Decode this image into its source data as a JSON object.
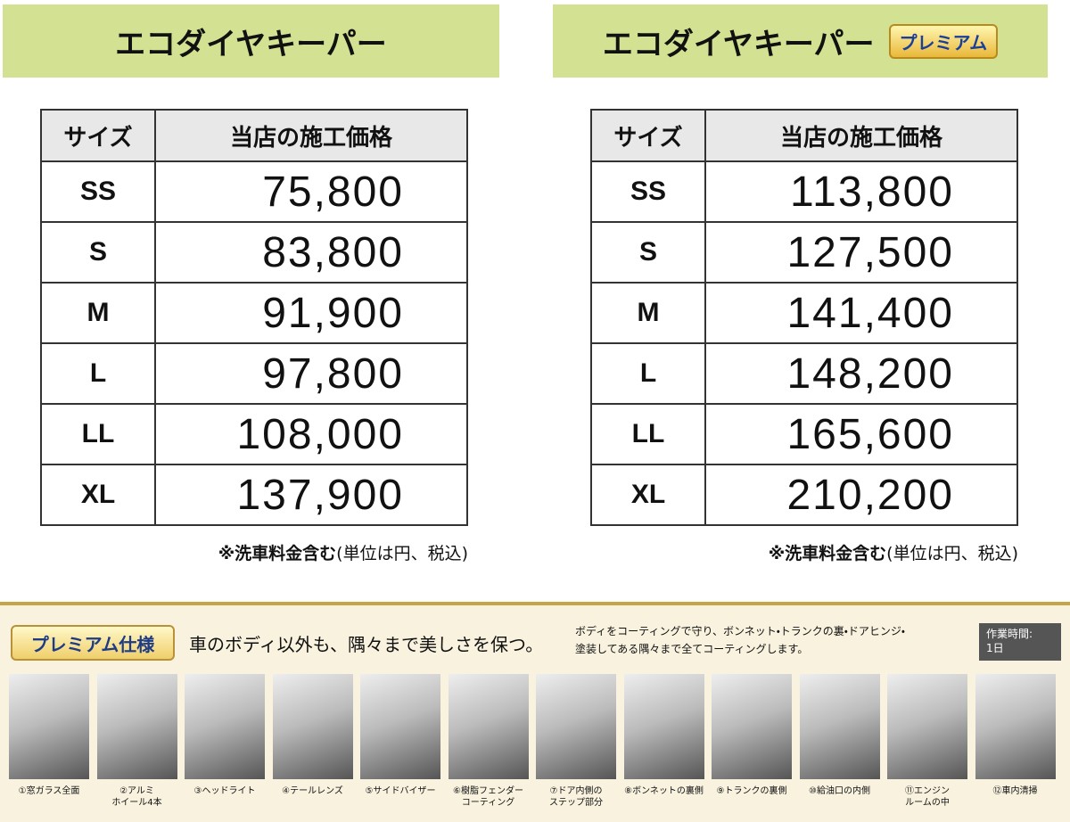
{
  "left": {
    "title": "エコダイヤキーパー",
    "table": {
      "header": [
        "サイズ",
        "当店の施工価格"
      ],
      "rows": [
        [
          "SS",
          "75,800"
        ],
        [
          "S",
          "83,800"
        ],
        [
          "M",
          "91,900"
        ],
        [
          "L",
          "97,800"
        ],
        [
          "LL",
          "108,000"
        ],
        [
          "XL",
          "137,900"
        ]
      ]
    },
    "note": {
      "bold": "※洗車料金含む",
      "rest": "(単位は円、税込)"
    }
  },
  "right": {
    "title": "エコダイヤキーパー",
    "badge": "プレミアム",
    "table": {
      "header": [
        "サイズ",
        "当店の施工価格"
      ],
      "rows": [
        [
          "SS",
          "113,800"
        ],
        [
          "S",
          "127,500"
        ],
        [
          "M",
          "141,400"
        ],
        [
          "L",
          "148,200"
        ],
        [
          "LL",
          "165,600"
        ],
        [
          "XL",
          "210,200"
        ]
      ]
    },
    "note": {
      "bold": "※洗車料金含む",
      "rest": "(単位は円、税込)"
    }
  },
  "premium": {
    "badge": "プレミアム仕様",
    "tagline": "車のボディ以外も、隅々まで美しさを保つ。",
    "description": [
      "ボディをコーティングで守り、ボンネット・トランクの裏・ドアヒンジ・",
      "塗装してある隅々まで全てコーティングします。"
    ],
    "work_time": {
      "label": "作業時間:",
      "value": "1日"
    },
    "steps": [
      [
        "①窓ガラス全面"
      ],
      [
        "②アルミ",
        "ホイール4本"
      ],
      [
        "③ヘッドライト"
      ],
      [
        "④テールレンズ"
      ],
      [
        "⑤サイドバイザー"
      ],
      [
        "⑥樹脂フェンダー",
        "コーティング"
      ],
      [
        "⑦ドア内側の",
        "ステップ部分"
      ],
      [
        "⑧ボンネットの裏側"
      ],
      [
        "⑨トランクの裏側"
      ],
      [
        "⑩給油口の内側"
      ],
      [
        "⑪エンジン",
        "ルームの中"
      ],
      [
        "⑫車内清掃"
      ]
    ]
  }
}
